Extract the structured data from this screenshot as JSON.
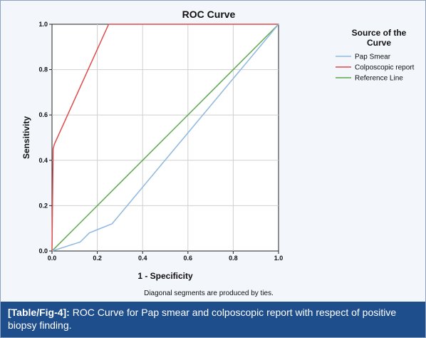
{
  "caption": {
    "label": "[Table/Fig-4]:",
    "text": "ROC Curve for Pap smear and colposcopic report with respect of positive biopsy finding."
  },
  "chart_data": {
    "type": "line",
    "title": "ROC Curve",
    "xlabel": "1 - Specificity",
    "ylabel": "Sensitivity",
    "xlim": [
      0,
      1
    ],
    "ylim": [
      0,
      1
    ],
    "xticks": [
      "0.0",
      "0.2",
      "0.4",
      "0.6",
      "0.8",
      "1.0"
    ],
    "yticks": [
      "0.0",
      "0.2",
      "0.4",
      "0.6",
      "0.8",
      "1.0"
    ],
    "grid": true,
    "legend": {
      "title": "Source of the Curve",
      "title_lines": [
        "Source of the",
        "Curve"
      ],
      "placement": "right"
    },
    "footnote": "Diagonal segments are produced by ties.",
    "series": [
      {
        "name": "Pap Smear",
        "color": "#8fb8e0",
        "x": [
          0,
          0.125,
          0.165,
          0.19,
          0.265,
          1
        ],
        "y": [
          0,
          0.04,
          0.08,
          0.09,
          0.12,
          1
        ]
      },
      {
        "name": "Colposcopic report",
        "color": "#e04a4a",
        "x": [
          0,
          0.005,
          0.01,
          0.25,
          1
        ],
        "y": [
          0,
          0.45,
          0.47,
          1,
          1
        ]
      },
      {
        "name": "Reference Line",
        "color": "#5aa84a",
        "x": [
          0,
          1
        ],
        "y": [
          0,
          1
        ]
      }
    ]
  }
}
